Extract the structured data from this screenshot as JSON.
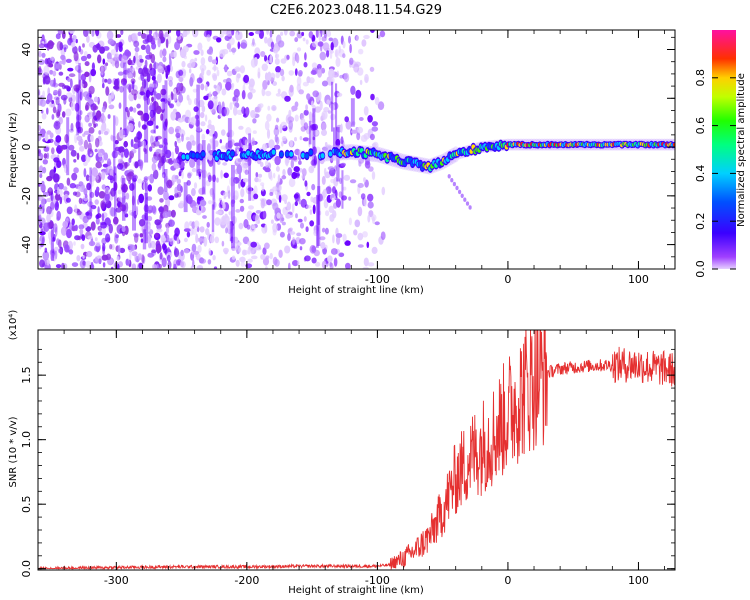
{
  "title": "C2E6.2023.048.11.54.G29",
  "colors": {
    "snr_line": "#e53030",
    "spectrogram_noise": "#8a2be2",
    "spectrogram_band_core": "#ff2020"
  },
  "chart_data": [
    {
      "type": "heatmap",
      "xlabel": "Height of straight line (km)",
      "ylabel": "Frequency (Hz)",
      "xlim": [
        -360,
        128
      ],
      "ylim": [
        -50,
        48
      ],
      "xticks": [
        -300,
        -200,
        -100,
        0,
        100
      ],
      "yticks": [
        -40,
        -20,
        0,
        20,
        40
      ],
      "colorbar": {
        "label": "Normalized spectral amplitude",
        "range": [
          0.0,
          1.0
        ],
        "ticks": [
          "0.0",
          "0.2",
          "0.4",
          "0.6",
          "0.8"
        ],
        "colormap": "rainbow (violet to red to magenta)"
      },
      "ridge": {
        "x": [
          -250,
          -200,
          -150,
          -120,
          -100,
          -80,
          -60,
          -50,
          -40,
          -20,
          0,
          50,
          100,
          128
        ],
        "y": [
          -4,
          -3,
          -3,
          -2,
          -3,
          -6,
          -8,
          -6,
          -3,
          0,
          1,
          1,
          1,
          1
        ]
      },
      "grid": false
    },
    {
      "type": "line",
      "xlabel": "Height of straight line (km)",
      "ylabel": "SNR (10 * v/v)",
      "yscale_label": "(x10⁴)",
      "xlim": [
        -360,
        128
      ],
      "ylim": [
        -0.01,
        1.85
      ],
      "xticks": [
        -300,
        -200,
        -100,
        0,
        100
      ],
      "yticks": [
        0.0,
        0.5,
        1.0,
        1.5
      ],
      "series": [
        {
          "x": [
            -360,
            -300,
            -250,
            -200,
            -150,
            -120,
            -100,
            -90,
            -80,
            -70,
            -60,
            -50,
            -40,
            -30,
            -20,
            -10,
            0,
            10,
            20,
            30,
            40,
            60,
            80,
            100,
            110,
            128
          ],
          "y": [
            0.0,
            0.01,
            0.015,
            0.015,
            0.02,
            0.02,
            0.02,
            0.03,
            0.08,
            0.15,
            0.25,
            0.45,
            0.7,
            0.85,
            0.95,
            1.05,
            1.2,
            1.35,
            1.48,
            1.52,
            1.55,
            1.57,
            1.58,
            1.58,
            1.56,
            1.54
          ]
        }
      ],
      "grid": false
    }
  ]
}
